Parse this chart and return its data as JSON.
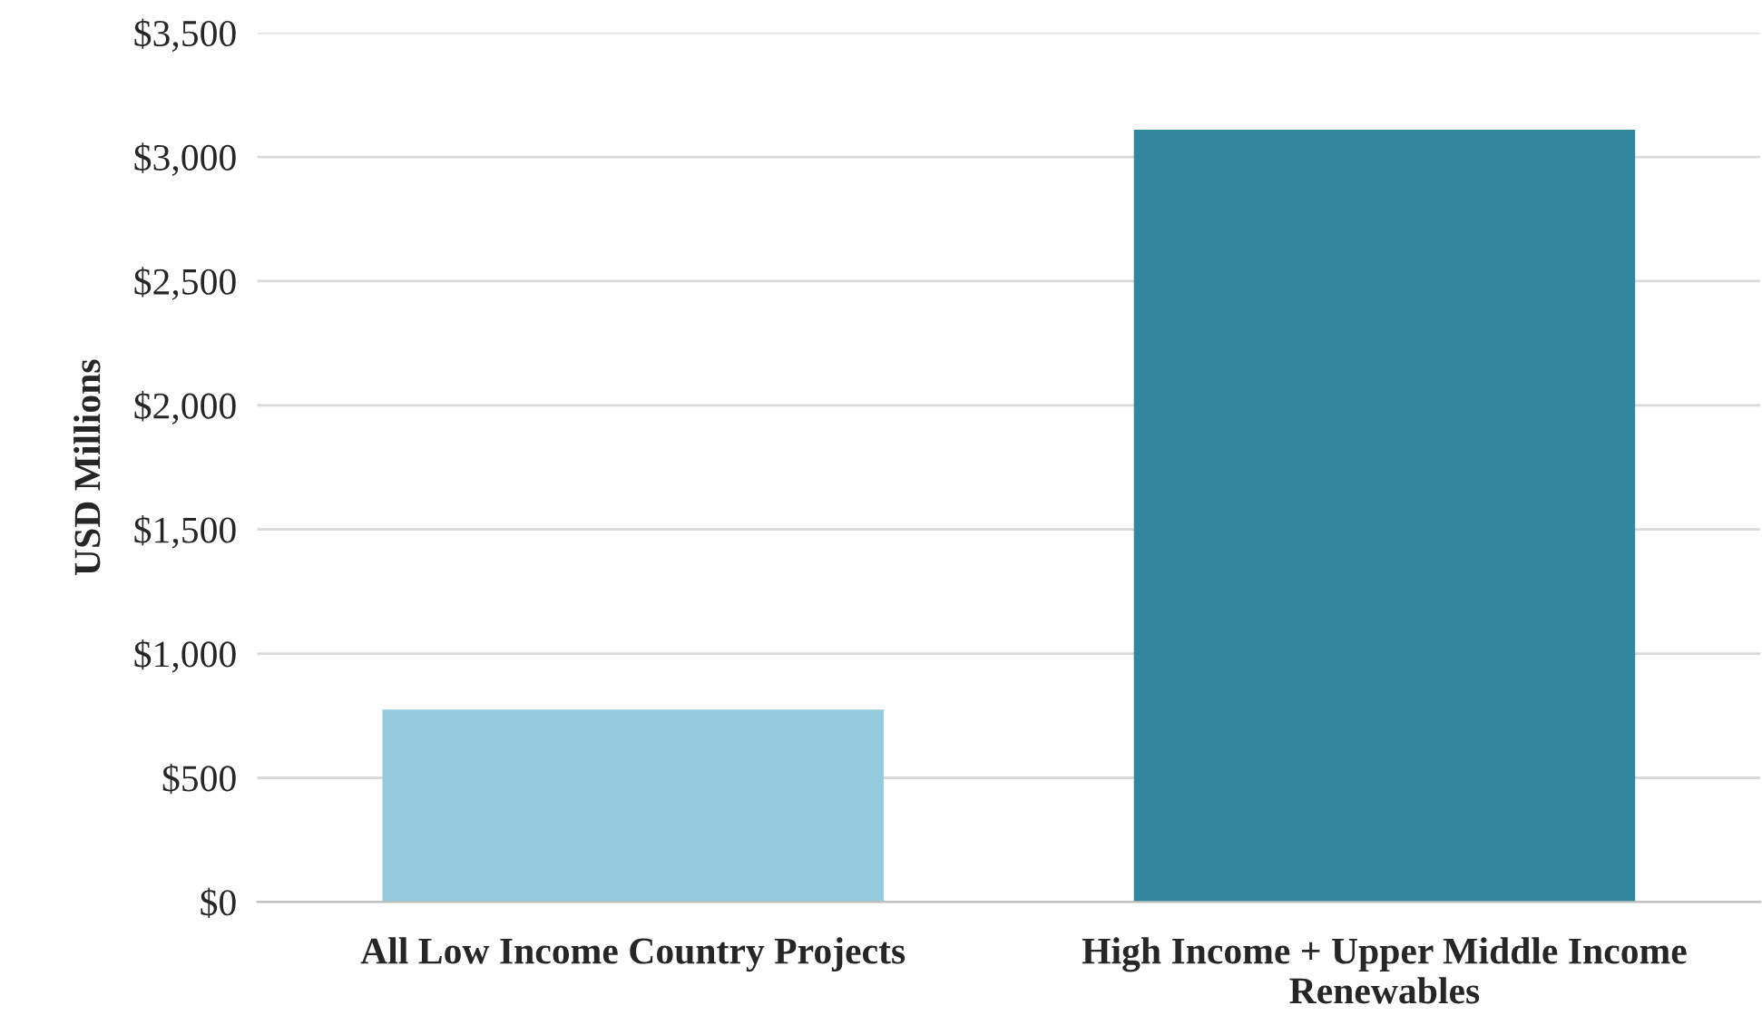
{
  "chart_data": {
    "type": "bar",
    "ylabel": "USD Millions",
    "categories": [
      "All Low Income Country Projects",
      "High Income + Upper Middle Income\nRenewables"
    ],
    "values": [
      775,
      3110
    ],
    "colors": [
      "#94cbdc",
      "#32869b"
    ],
    "ylim": [
      0,
      3500
    ],
    "yticks": [
      {
        "value": 0,
        "label": "$0"
      },
      {
        "value": 500,
        "label": "$500"
      },
      {
        "value": 1000,
        "label": "$1,000"
      },
      {
        "value": 1500,
        "label": "$1,500"
      },
      {
        "value": 2000,
        "label": "$2,000"
      },
      {
        "value": 2500,
        "label": "$2,500"
      },
      {
        "value": 3000,
        "label": "$3,000"
      },
      {
        "value": 3500,
        "label": "$3,500"
      }
    ],
    "grid": "y",
    "legend": false
  }
}
